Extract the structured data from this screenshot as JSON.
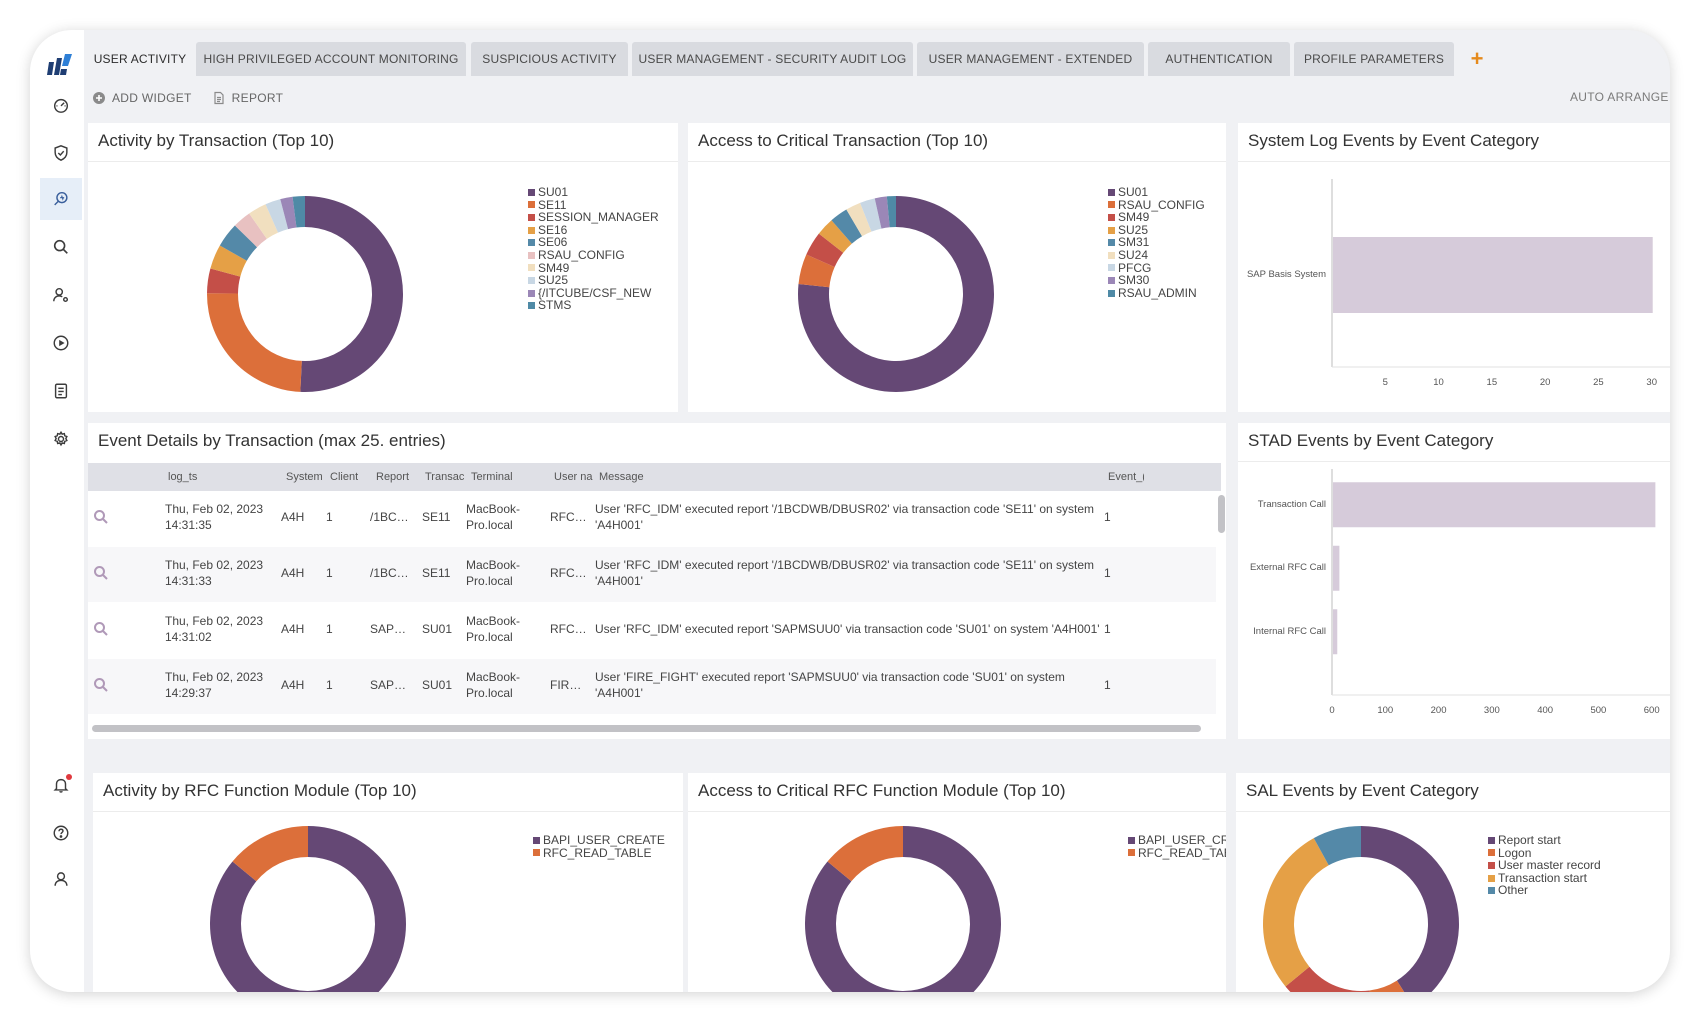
{
  "colors": {
    "purple": "#654875",
    "orange": "#dc6f3a",
    "red": "#c44f48",
    "amber": "#e5a046",
    "blue": "#5489a8",
    "pink": "#e8c1c1",
    "cream": "#f1dfbf",
    "lightblue": "#c8d7e4",
    "lavender": "#9b87b7",
    "teal": "#4f8aa6",
    "bar": "#d6cbda",
    "accent_add": "#e58a1c"
  },
  "tabs": [
    {
      "label": "USER ACTIVITY"
    },
    {
      "label": "HIGH PRIVILEGED ACCOUNT MONITORING"
    },
    {
      "label": "SUSPICIOUS ACTIVITY"
    },
    {
      "label": "USER MANAGEMENT - SECURITY AUDIT LOG"
    },
    {
      "label": "USER MANAGEMENT - EXTENDED"
    },
    {
      "label": "AUTHENTICATION"
    },
    {
      "label": "PROFILE PARAMETERS"
    }
  ],
  "tab_add_label": "+",
  "toolbar": {
    "add_widget": "ADD WIDGET",
    "report": "REPORT",
    "auto_arrange": "AUTO ARRANGE"
  },
  "sidebar_icons": [
    "dashboard-icon",
    "shield-icon",
    "investigate-icon",
    "search-icon",
    "user-settings-icon",
    "play-icon",
    "report-list-icon",
    "settings-icon",
    "bell-icon",
    "help-icon",
    "profile-icon"
  ],
  "panels": {
    "activity_transaction": {
      "title": "Activity by Transaction (Top 10)"
    },
    "critical_transaction": {
      "title": "Access to Critical Transaction (Top 10)"
    },
    "syslog": {
      "title": "System Log Events by Event Category"
    },
    "event_details": {
      "title": "Event Details by Transaction (max 25. entries)"
    },
    "stad": {
      "title": "STAD Events by Event Category"
    },
    "rfc_activity": {
      "title": "Activity by RFC Function Module (Top 10)"
    },
    "rfc_critical": {
      "title": "Access to Critical RFC Function Module (Top 10)"
    },
    "sal": {
      "title": "SAL Events by Event Category"
    }
  },
  "table": {
    "columns": [
      "log_ts",
      "System",
      "Client",
      "Report",
      "Transac",
      "Terminal",
      "User na",
      "Message",
      "Event_("
    ],
    "rows": [
      {
        "date": "Thu, Feb 02, 2023",
        "time": "14:31:35",
        "system": "A4H",
        "client": "1",
        "report": "/1BC…",
        "transaction": "SE11",
        "terminal1": "MacBook-",
        "terminal2": "Pro.local",
        "user": "RFC…",
        "msg1": "User 'RFC_IDM' executed report '/1BCDWB/DBUSR02' via transaction code 'SE11' on system",
        "msg2": "'A4H001'",
        "event": "1"
      },
      {
        "date": "Thu, Feb 02, 2023",
        "time": "14:31:33",
        "system": "A4H",
        "client": "1",
        "report": "/1BC…",
        "transaction": "SE11",
        "terminal1": "MacBook-",
        "terminal2": "Pro.local",
        "user": "RFC…",
        "msg1": "User 'RFC_IDM' executed report '/1BCDWB/DBUSR02' via transaction code 'SE11' on system",
        "msg2": "'A4H001'",
        "event": "1"
      },
      {
        "date": "Thu, Feb 02, 2023",
        "time": "14:31:02",
        "system": "A4H",
        "client": "1",
        "report": "SAP…",
        "transaction": "SU01",
        "terminal1": "MacBook-",
        "terminal2": "Pro.local",
        "user": "RFC…",
        "msg1": "User 'RFC_IDM' executed report 'SAPMSUU0' via transaction code 'SU01' on system 'A4H001'",
        "msg2": "",
        "event": "1"
      },
      {
        "date": "Thu, Feb 02, 2023",
        "time": "14:29:37",
        "system": "A4H",
        "client": "1",
        "report": "SAP…",
        "transaction": "SU01",
        "terminal1": "MacBook-",
        "terminal2": "Pro.local",
        "user": "FIR…",
        "msg1": "User 'FIRE_FIGHT' executed report 'SAPMSUU0' via transaction code 'SU01' on system",
        "msg2": "'A4H001'",
        "event": "1"
      }
    ]
  },
  "chart_data": [
    {
      "id": "activity_transaction",
      "type": "pie",
      "title": "Activity by Transaction (Top 10)",
      "labels": [
        "SU01",
        "SE11",
        "SESSION_MANAGER",
        "SE16",
        "SE06",
        "RSAU_CONFIG",
        "SM49",
        "SU25",
        "{/ITCUBE/CSF_NEW",
        "STMS"
      ],
      "values": [
        50,
        24,
        4,
        4,
        4,
        3,
        3,
        2.5,
        2,
        2
      ],
      "colors": [
        "#654875",
        "#dc6f3a",
        "#c44f48",
        "#e5a046",
        "#5489a8",
        "#e8c1c1",
        "#f1dfbf",
        "#c8d7e4",
        "#9b87b7",
        "#4f8aa6"
      ]
    },
    {
      "id": "critical_transaction",
      "type": "pie",
      "title": "Access to Critical Transaction (Top 10)",
      "labels": [
        "SU01",
        "RSAU_CONFIG",
        "SM49",
        "SU25",
        "SM31",
        "SU24",
        "PFCG",
        "SM30",
        "RSAU_ADMIN"
      ],
      "values": [
        77,
        5,
        4,
        3,
        3,
        2.5,
        2.5,
        2,
        1.5
      ],
      "colors": [
        "#654875",
        "#dc6f3a",
        "#c44f48",
        "#e5a046",
        "#5489a8",
        "#f1dfbf",
        "#c8d7e4",
        "#9b87b7",
        "#4f8aa6"
      ]
    },
    {
      "id": "syslog",
      "type": "bar",
      "orientation": "horizontal",
      "title": "System Log Events by Event Category",
      "categories": [
        "SAP Basis System"
      ],
      "values": [
        30
      ],
      "xticks": [
        5,
        10,
        15,
        20,
        25,
        30
      ],
      "xlim": [
        0,
        35
      ]
    },
    {
      "id": "stad",
      "type": "bar",
      "orientation": "horizontal",
      "title": "STAD Events by Event Category",
      "categories": [
        "Transaction Call",
        "External RFC Call",
        "Internal RFC Call"
      ],
      "values": [
        605,
        12,
        8
      ],
      "xticks": [
        0,
        100,
        200,
        300,
        400,
        500,
        600,
        700
      ],
      "xlim": [
        0,
        700
      ]
    },
    {
      "id": "rfc_activity",
      "type": "pie",
      "title": "Activity by RFC Function Module (Top 10)",
      "labels": [
        "BAPI_USER_CREATE",
        "RFC_READ_TABLE"
      ],
      "values": [
        86,
        14
      ],
      "colors": [
        "#654875",
        "#dc6f3a"
      ]
    },
    {
      "id": "rfc_critical",
      "type": "pie",
      "title": "Access to Critical RFC Function Module (Top 10)",
      "labels": [
        "BAPI_USER_CREATE",
        "RFC_READ_TABLE"
      ],
      "values": [
        86,
        14
      ],
      "colors": [
        "#654875",
        "#dc6f3a"
      ]
    },
    {
      "id": "sal",
      "type": "pie",
      "title": "SAL Events by Event Category",
      "labels": [
        "Report start",
        "Logon",
        "User master record",
        "Transaction start",
        "Other"
      ],
      "values": [
        41,
        7,
        16,
        28,
        8
      ],
      "colors": [
        "#654875",
        "#dc6f3a",
        "#c44f48",
        "#e5a046",
        "#5489a8"
      ]
    }
  ]
}
